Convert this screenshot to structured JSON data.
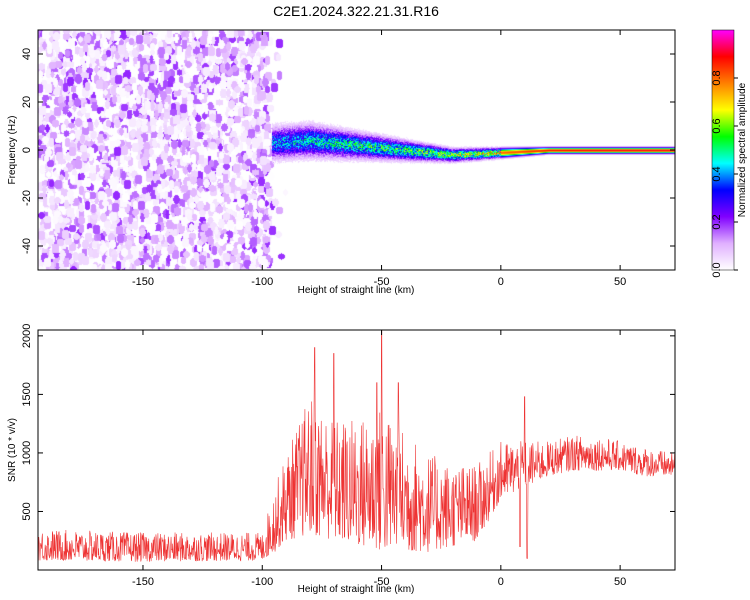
{
  "figure": {
    "title": "C2E1.2024.322.21.31.R16"
  },
  "chart_data": [
    {
      "type": "heatmap",
      "xlabel": "Height of straight line (km)",
      "ylabel": "Frequency (Hz)",
      "xlim": [
        -194,
        73
      ],
      "ylim": [
        -50,
        50
      ],
      "xticks": [
        -150,
        -100,
        -50,
        0,
        50
      ],
      "yticks": [
        -40,
        -20,
        0,
        20,
        40
      ],
      "colorbar": {
        "label": "Normalized spectral amplitude",
        "range": [
          0,
          1
        ],
        "ticks": [
          "0.0",
          "0.2",
          "0.4",
          "0.6",
          "0.8"
        ],
        "colormap": [
          "#ffffff",
          "#e0b0ff",
          "#8000ff",
          "#0000ff",
          "#00ffff",
          "#00ff00",
          "#ffff00",
          "#ff8000",
          "#ff0000",
          "#ff00ff"
        ]
      },
      "regions": [
        {
          "x": [
            -194,
            -97
          ],
          "description_level": "noise",
          "amplitude": [
            0.0,
            0.2
          ]
        },
        {
          "x": [
            -97,
            73
          ],
          "center_frequency_hz": 0,
          "amplitude": [
            0.4,
            0.9
          ]
        }
      ],
      "ridge": {
        "x": [
          -96,
          -80,
          -60,
          -40,
          -20,
          0,
          20,
          40,
          60,
          73
        ],
        "y": [
          3,
          4,
          2,
          0,
          -2,
          -1,
          0,
          0,
          0,
          0
        ],
        "halfwidth": [
          5,
          5,
          4,
          3,
          2,
          1.5,
          1,
          1,
          1,
          1
        ],
        "amplitude": [
          0.45,
          0.5,
          0.55,
          0.6,
          0.65,
          0.8,
          0.88,
          0.9,
          0.9,
          0.9
        ]
      }
    },
    {
      "type": "line",
      "xlabel": "Height of straight line (km)",
      "ylabel": "SNR (10 * v/v)",
      "xlim": [
        -194,
        73
      ],
      "ylim": [
        0,
        2050
      ],
      "xticks": [
        -150,
        -100,
        -50,
        0,
        50
      ],
      "yticks": [
        500,
        1000,
        1500,
        2000
      ],
      "color": "#ee3333",
      "envelope": {
        "x": [
          -194,
          -150,
          -100,
          -95,
          -90,
          -80,
          -70,
          -60,
          -50,
          -40,
          -30,
          -20,
          -10,
          0,
          10,
          20,
          30,
          40,
          50,
          60,
          73
        ],
        "low": [
          80,
          70,
          80,
          150,
          250,
          300,
          250,
          200,
          150,
          150,
          150,
          200,
          250,
          600,
          700,
          800,
          850,
          850,
          850,
          800,
          800
        ],
        "high": [
          350,
          320,
          320,
          700,
          1000,
          1500,
          1300,
          1300,
          1400,
          1200,
          1000,
          900,
          900,
          1100,
          1100,
          1100,
          1150,
          1150,
          1100,
          1050,
          1000
        ]
      },
      "peaks": [
        {
          "x": -78,
          "y": 1900
        },
        {
          "x": -70,
          "y": 1850
        },
        {
          "x": -52,
          "y": 1600
        },
        {
          "x": -50,
          "y": 2050
        },
        {
          "x": -43,
          "y": 1600
        },
        {
          "x": 10,
          "y": 1480
        }
      ],
      "dips": [
        {
          "x": 11,
          "y": 100
        },
        {
          "x": 8,
          "y": 200
        }
      ]
    }
  ]
}
